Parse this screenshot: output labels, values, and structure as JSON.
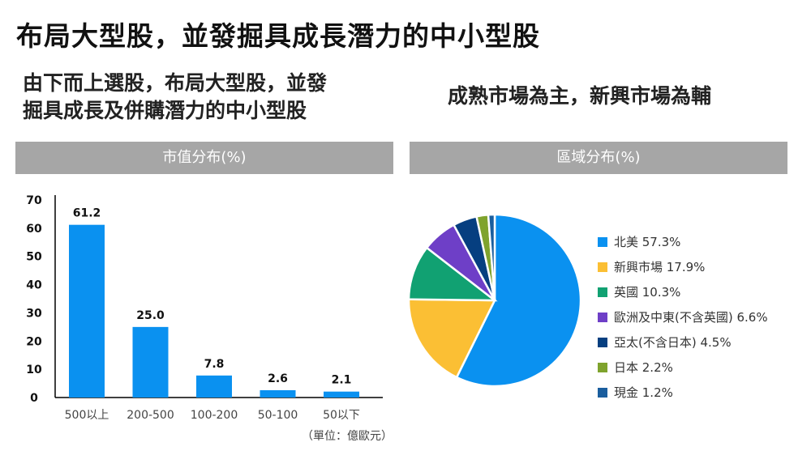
{
  "title": "布局大型股，並發掘具成長潛力的中小型股",
  "subtitle_left_line1": "由下而上選股，布局大型股，並發",
  "subtitle_left_line2": "掘具成長及併購潛力的中小型股",
  "subtitle_right": "成熟市場為主，新興市場為輔",
  "bar_panel_title": "市值分布(%)",
  "pie_panel_title": "區域分布(%)",
  "unit_note": "（單位：億歐元）",
  "colors": {
    "bar": "#0a91f0",
    "panel_header": "#a6a6a6"
  },
  "chart_data": [
    {
      "type": "bar",
      "title": "市值分布(%)",
      "categories": [
        "500以上",
        "200-500",
        "100-200",
        "50-100",
        "50以下"
      ],
      "values": [
        61.2,
        25.0,
        7.8,
        2.6,
        2.1
      ],
      "value_labels": [
        "61.2",
        "25.0",
        "7.8",
        "2.6",
        "2.1"
      ],
      "ylim": [
        0,
        70
      ],
      "yticks": [
        "0",
        "10",
        "20",
        "30",
        "40",
        "50",
        "60",
        "70"
      ],
      "grid": false,
      "xlabel": "",
      "ylabel": ""
    },
    {
      "type": "pie",
      "title": "區域分布(%)",
      "legend_position": "right",
      "slices": [
        {
          "label": "北美 57.3%",
          "value": 57.3,
          "color": "#0a91f0"
        },
        {
          "label": "新興市場 17.9%",
          "value": 17.9,
          "color": "#fbbf34"
        },
        {
          "label": "英國 10.3%",
          "value": 10.3,
          "color": "#11a172"
        },
        {
          "label": "歐洲及中東(不含英國) 6.6%",
          "value": 6.6,
          "color": "#6e3fc7"
        },
        {
          "label": "亞太(不含日本) 4.5%",
          "value": 4.5,
          "color": "#063f80"
        },
        {
          "label": "日本 2.2%",
          "value": 2.2,
          "color": "#7fa32d"
        },
        {
          "label": "現金 1.2%",
          "value": 1.2,
          "color": "#1a5e9e"
        }
      ]
    }
  ]
}
